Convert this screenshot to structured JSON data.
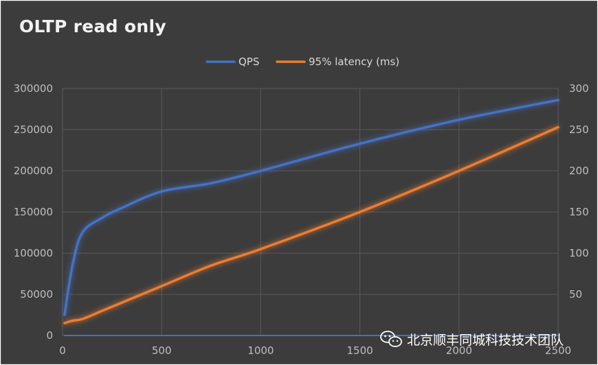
{
  "chart_data": {
    "type": "line",
    "title": "OLTP read only",
    "x": [
      10,
      50,
      100,
      200,
      300,
      500,
      750,
      1000,
      1500,
      2000,
      2500
    ],
    "series": [
      {
        "name": "QPS",
        "axis": "left",
        "color": "#4472c4",
        "values": [
          25000,
          85000,
          125000,
          143000,
          155000,
          175000,
          185000,
          200000,
          233000,
          262000,
          286000
        ]
      },
      {
        "name": "95% latency (ms)",
        "axis": "right",
        "color": "#ed7d31",
        "values": [
          15,
          18,
          20,
          30,
          40,
          60,
          85,
          105,
          150,
          200,
          253
        ]
      },
      {
        "name": "",
        "axis": "left",
        "color": "#4472c4",
        "values": [
          0,
          0,
          0,
          0,
          0,
          0,
          0,
          0,
          0,
          0,
          0
        ]
      }
    ],
    "xlim": [
      0,
      2500
    ],
    "x_ticks": [
      "0",
      "500",
      "1000",
      "1500",
      "2000",
      "2500"
    ],
    "x_tick_values": [
      0,
      500,
      1000,
      1500,
      2000,
      2500
    ],
    "ylim_left": [
      0,
      300000
    ],
    "y_ticks_left": [
      "0",
      "50000",
      "100000",
      "150000",
      "200000",
      "250000",
      "300000"
    ],
    "ylim_right": [
      0,
      300
    ],
    "y_ticks_right": [
      "50",
      "100",
      "150",
      "200",
      "250",
      "300"
    ],
    "grid": true,
    "legend_position": "top-center"
  },
  "watermark": {
    "text": "北京顺丰同城科技技术团队",
    "icon": "wechat-icon"
  }
}
